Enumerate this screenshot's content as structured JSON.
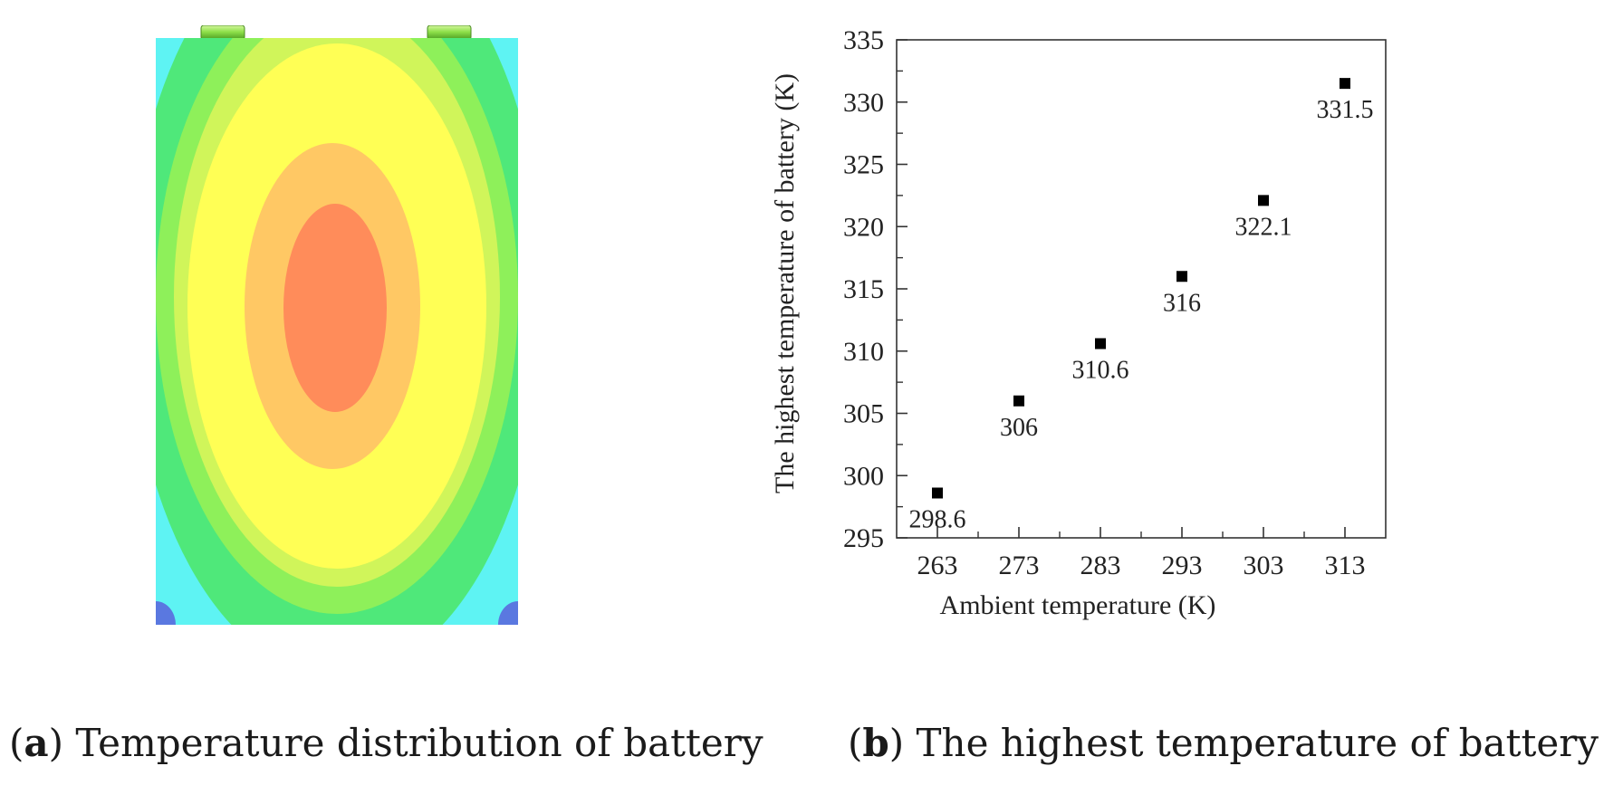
{
  "panel_a": {
    "caption_letter": "a",
    "caption_text": "Temperature distribution of battery",
    "colors": {
      "outer": "#5ef3f3",
      "ring1": "#4fe87a",
      "ring2": "#8ef05a",
      "ring3": "#d0f55a",
      "ring4": "#ffff55",
      "ring5": "#ffc864",
      "core": "#ff8c5a",
      "corner": "#5a78e0",
      "terminal": "#8ee04a"
    }
  },
  "panel_b": {
    "caption_letter": "b",
    "caption_text": "The highest temperature of battery"
  },
  "chart_data": {
    "type": "scatter",
    "title": "",
    "xlabel": "Ambient temperature (K)",
    "ylabel": "The highest temperature of battery (K)",
    "x": [
      263,
      273,
      283,
      293,
      303,
      313
    ],
    "y": [
      298.6,
      306,
      310.6,
      316,
      322.1,
      331.5
    ],
    "point_labels": [
      "298.6",
      "306",
      "310.6",
      "316",
      "322.1",
      "331.5"
    ],
    "xticks": [
      "263",
      "273",
      "283",
      "293",
      "303",
      "313"
    ],
    "yticks": [
      "295",
      "300",
      "305",
      "310",
      "315",
      "320",
      "325",
      "330",
      "335"
    ],
    "xlim": [
      258,
      318
    ],
    "ylim": [
      295,
      335
    ],
    "grid": false,
    "legend": "none",
    "marker_color": "#000000"
  }
}
